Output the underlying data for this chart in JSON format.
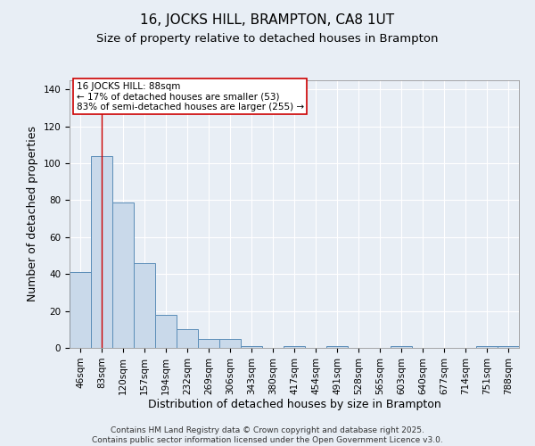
{
  "title": "16, JOCKS HILL, BRAMPTON, CA8 1UT",
  "subtitle": "Size of property relative to detached houses in Brampton",
  "xlabel": "Distribution of detached houses by size in Brampton",
  "ylabel": "Number of detached properties",
  "bar_labels": [
    "46sqm",
    "83sqm",
    "120sqm",
    "157sqm",
    "194sqm",
    "232sqm",
    "269sqm",
    "306sqm",
    "343sqm",
    "380sqm",
    "417sqm",
    "454sqm",
    "491sqm",
    "528sqm",
    "565sqm",
    "603sqm",
    "640sqm",
    "677sqm",
    "714sqm",
    "751sqm",
    "788sqm"
  ],
  "bar_values": [
    41,
    104,
    79,
    46,
    18,
    10,
    5,
    5,
    1,
    0,
    1,
    0,
    1,
    0,
    0,
    1,
    0,
    0,
    0,
    1,
    1
  ],
  "bar_color": "#c9d9ea",
  "bar_edge_color": "#5b8db8",
  "ylim": [
    0,
    145
  ],
  "yticks": [
    0,
    20,
    40,
    60,
    80,
    100,
    120,
    140
  ],
  "vline_x": 1,
  "vline_color": "#cc0000",
  "annotation_title": "16 JOCKS HILL: 88sqm",
  "annotation_line1": "← 17% of detached houses are smaller (53)",
  "annotation_line2": "83% of semi-detached houses are larger (255) →",
  "footer_line1": "Contains HM Land Registry data © Crown copyright and database right 2025.",
  "footer_line2": "Contains public sector information licensed under the Open Government Licence v3.0.",
  "background_color": "#e8eef5",
  "grid_color": "#ffffff",
  "title_fontsize": 11,
  "subtitle_fontsize": 9.5,
  "axis_label_fontsize": 9,
  "tick_fontsize": 7.5,
  "annotation_fontsize": 7.5,
  "footer_fontsize": 6.5
}
